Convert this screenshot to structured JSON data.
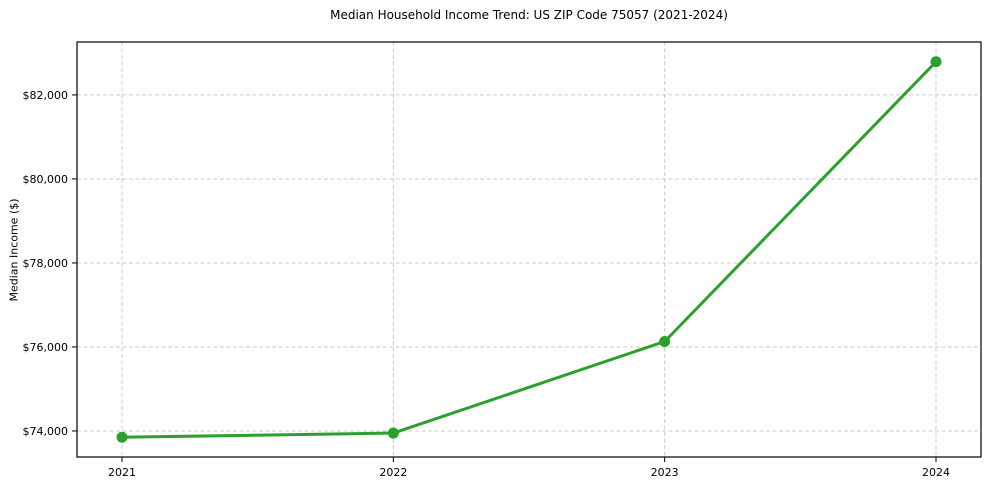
{
  "page": {
    "background_color": "#ffffff",
    "text_color": "#000000"
  },
  "chart_data": {
    "type": "line",
    "title": "Median Household Income Trend: US ZIP Code 75057 (2021-2024)",
    "xlabel": "",
    "ylabel": "Median Income ($)",
    "categories": [
      "2021",
      "2022",
      "2023",
      "2024"
    ],
    "values": [
      73850,
      73950,
      76130,
      82790
    ],
    "yticks": [
      74000,
      76000,
      78000,
      80000,
      82000
    ],
    "ytick_labels": [
      "$74,000",
      "$76,000",
      "$78,000",
      "$80,000",
      "$82,000"
    ],
    "ylim": [
      73380,
      83260
    ],
    "grid": true,
    "grid_style": "dashed",
    "grid_color": "#cccccc",
    "line_color": "#2ca02c",
    "marker_color": "#2ca02c",
    "border_color": "#000000",
    "legend_position": "none"
  }
}
